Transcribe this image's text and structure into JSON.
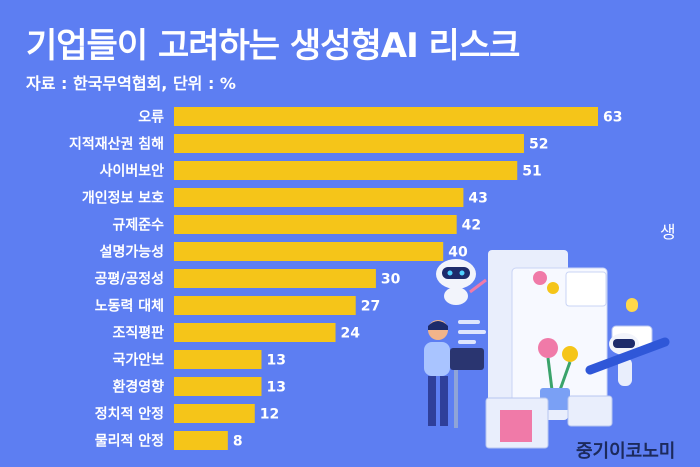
{
  "title": "기업들이 고려하는 생성형AI 리스크",
  "source": "자료 : 한국무역협회, 단위 : %",
  "side_text": "생",
  "watermark": "중기이코노미",
  "colors": {
    "background": "#5d7ef2",
    "bar": "#f5c519",
    "text": "#ffffff"
  },
  "chart_data": {
    "type": "bar",
    "orientation": "horizontal",
    "title": "기업들이 고려하는 생성형AI 리스크",
    "categories": [
      "오류",
      "지적재산권 침해",
      "사이버보안",
      "개인정보 보호",
      "규제준수",
      "설명가능성",
      "공평/공정성",
      "노동력 대체",
      "조직평판",
      "국가안보",
      "환경영향",
      "정치적 안정",
      "물리적 안정"
    ],
    "values": [
      63,
      52,
      51,
      43,
      42,
      40,
      30,
      27,
      24,
      13,
      13,
      12,
      8
    ],
    "unit": "%",
    "xlim": [
      0,
      63
    ],
    "grid": false,
    "legend": "none"
  }
}
